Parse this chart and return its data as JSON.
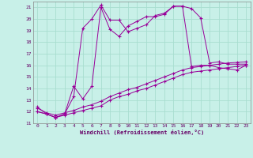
{
  "xlabel": "Windchill (Refroidissement éolien,°C)",
  "bg_color": "#c8f0e8",
  "grid_color": "#a8ddd0",
  "line_color": "#990099",
  "xlim": [
    -0.5,
    23.5
  ],
  "ylim": [
    11,
    21.5
  ],
  "yticks": [
    11,
    12,
    13,
    14,
    15,
    16,
    17,
    18,
    19,
    20,
    21
  ],
  "xticks": [
    0,
    1,
    2,
    3,
    4,
    5,
    6,
    7,
    8,
    9,
    10,
    11,
    12,
    13,
    14,
    15,
    16,
    17,
    18,
    19,
    20,
    21,
    22,
    23
  ],
  "series1_x": [
    0,
    1,
    2,
    3,
    4,
    5,
    6,
    7,
    8,
    9,
    10,
    11,
    12,
    13,
    14,
    15,
    16,
    17,
    18,
    19,
    20,
    21,
    22,
    23
  ],
  "series1_y": [
    12.4,
    11.8,
    11.5,
    11.8,
    13.3,
    19.2,
    20.0,
    21.2,
    19.9,
    19.9,
    18.9,
    19.2,
    19.5,
    20.3,
    20.5,
    21.1,
    21.1,
    20.9,
    20.1,
    16.2,
    16.3,
    16.1,
    16.1,
    16.1
  ],
  "series2_x": [
    0,
    1,
    2,
    3,
    4,
    5,
    6,
    7,
    8,
    9,
    10,
    11,
    12,
    13,
    14,
    15,
    16,
    17,
    18,
    19,
    20,
    21,
    22,
    23
  ],
  "series2_y": [
    12.0,
    11.8,
    11.5,
    11.8,
    14.2,
    13.1,
    14.2,
    21.0,
    19.1,
    18.5,
    19.4,
    19.8,
    20.2,
    20.2,
    20.4,
    21.1,
    21.1,
    15.9,
    16.0,
    16.0,
    15.8,
    15.7,
    15.6,
    16.0
  ],
  "series3_x": [
    0,
    1,
    2,
    3,
    4,
    5,
    6,
    7,
    8,
    9,
    10,
    11,
    12,
    13,
    14,
    15,
    16,
    17,
    18,
    19,
    20,
    21,
    22,
    23
  ],
  "series3_y": [
    12.0,
    11.8,
    11.5,
    11.7,
    11.9,
    12.1,
    12.3,
    12.5,
    13.0,
    13.3,
    13.5,
    13.8,
    14.0,
    14.3,
    14.6,
    14.9,
    15.2,
    15.4,
    15.5,
    15.6,
    15.7,
    15.8,
    15.9,
    16.0
  ],
  "series4_x": [
    0,
    1,
    2,
    3,
    4,
    5,
    6,
    7,
    8,
    9,
    10,
    11,
    12,
    13,
    14,
    15,
    16,
    17,
    18,
    19,
    20,
    21,
    22,
    23
  ],
  "series4_y": [
    12.3,
    11.9,
    11.7,
    11.9,
    12.1,
    12.4,
    12.6,
    12.9,
    13.3,
    13.6,
    13.9,
    14.1,
    14.4,
    14.7,
    15.0,
    15.3,
    15.6,
    15.8,
    15.9,
    16.0,
    16.1,
    16.2,
    16.25,
    16.3
  ]
}
